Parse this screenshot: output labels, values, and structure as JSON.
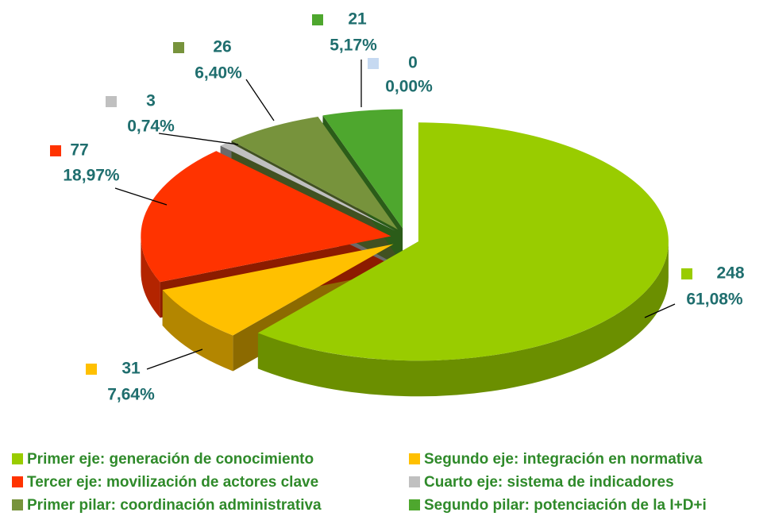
{
  "chart_data": {
    "type": "pie3d",
    "categories": [
      "Primer eje: generación de conocimiento",
      "Segundo eje: integración en normativa",
      "Tercer eje: movilización de actores clave",
      "Cuarto eje: sistema de indicadores",
      "Primer pilar: coordinación administrativa",
      "Segundo pilar: potenciación de la I+D+i",
      null
    ],
    "values": [
      248,
      31,
      77,
      3,
      26,
      21,
      0
    ],
    "percentages": [
      61.08,
      7.64,
      18.97,
      0.74,
      6.4,
      5.17,
      0.0
    ],
    "percentage_labels": [
      "61,08%",
      "7,64%",
      "18,97%",
      "0,74%",
      "6,40%",
      "5,17%",
      "0,00%"
    ],
    "colors": [
      "#99cc00",
      "#ffc000",
      "#ff3300",
      "#c0c0c0",
      "#77933c",
      "#4ea72e",
      "#c6d9f1"
    ],
    "legend": "bottom"
  }
}
